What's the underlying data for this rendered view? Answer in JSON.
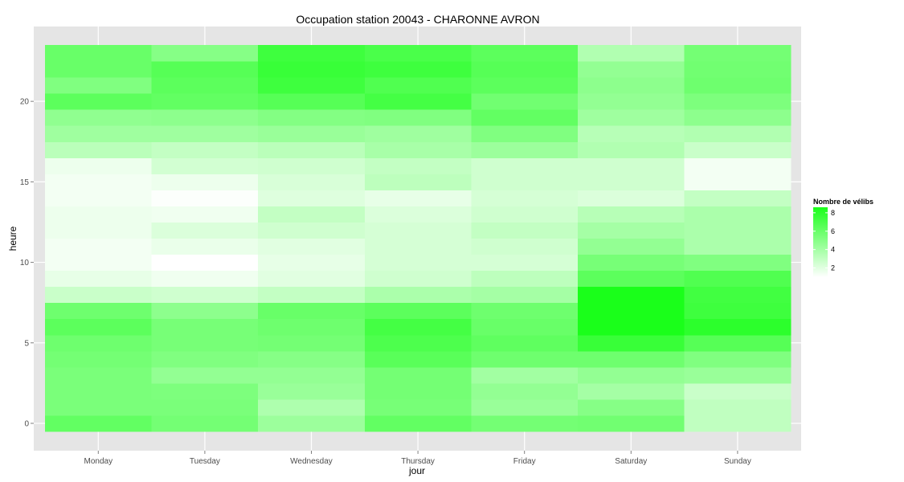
{
  "chart_data": {
    "type": "heatmap",
    "title": "Occupation station 20043 - CHARONNE AVRON",
    "xlabel": "jour",
    "ylabel": "heure",
    "x_categories": [
      "Monday",
      "Tuesday",
      "Wednesday",
      "Thursday",
      "Friday",
      "Saturday",
      "Sunday"
    ],
    "y_values": [
      0,
      1,
      2,
      3,
      4,
      5,
      6,
      7,
      8,
      9,
      10,
      11,
      12,
      13,
      14,
      15,
      16,
      17,
      18,
      19,
      20,
      21,
      22,
      23
    ],
    "y_ticks": [
      0,
      5,
      10,
      15,
      20
    ],
    "ylim": [
      -0.5,
      23.5
    ],
    "values": {
      "Monday": [
        6.2,
        5.4,
        5.4,
        5.4,
        5.6,
        5.8,
        6.4,
        5.8,
        2.8,
        1.8,
        1.4,
        1.4,
        1.6,
        1.6,
        1.4,
        1.4,
        1.6,
        3.3,
        4.2,
        4.7,
        6.4,
        5.2,
        6.0,
        6.0
      ],
      "Tuesday": [
        5.6,
        5.4,
        5.3,
        4.6,
        5.2,
        5.5,
        5.5,
        4.8,
        2.6,
        1.5,
        1.0,
        1.7,
        2.2,
        1.5,
        1.1,
        1.6,
        2.5,
        3.0,
        4.2,
        4.8,
        6.2,
        6.4,
        6.6,
        5.0
      ],
      "Wednesday": [
        4.3,
        3.7,
        4.4,
        4.6,
        5.0,
        5.6,
        5.8,
        6.0,
        3.0,
        2.0,
        1.8,
        2.0,
        2.6,
        3.0,
        2.1,
        2.3,
        2.6,
        3.3,
        4.4,
        5.1,
        6.6,
        7.4,
        7.6,
        7.4
      ],
      "Thursday": [
        6.2,
        5.5,
        5.6,
        5.6,
        6.5,
        6.9,
        7.2,
        6.4,
        3.8,
        2.6,
        2.4,
        2.4,
        2.4,
        2.2,
        1.8,
        3.2,
        3.0,
        3.9,
        4.2,
        5.2,
        7.2,
        6.8,
        7.4,
        7.0
      ],
      "Friday": [
        5.6,
        4.4,
        4.6,
        4.1,
        5.8,
        6.3,
        6.0,
        5.8,
        4.0,
        3.2,
        2.4,
        2.6,
        3.0,
        2.6,
        2.4,
        2.6,
        2.6,
        4.3,
        5.2,
        6.2,
        5.7,
        6.4,
        6.6,
        6.4
      ],
      "Saturday": [
        5.7,
        5.0,
        4.0,
        4.6,
        5.8,
        7.6,
        8.6,
        8.6,
        8.6,
        6.4,
        5.5,
        4.6,
        4.0,
        3.4,
        2.2,
        2.6,
        2.6,
        3.6,
        3.4,
        4.2,
        4.6,
        4.8,
        4.6,
        3.6
      ],
      "Sunday": [
        3.1,
        3.1,
        2.8,
        4.4,
        5.2,
        6.6,
        8.0,
        7.4,
        7.3,
        6.8,
        5.2,
        3.8,
        3.8,
        3.8,
        3.0,
        1.4,
        1.4,
        2.8,
        3.6,
        4.8,
        5.3,
        5.8,
        5.7,
        5.6
      ]
    },
    "legend": {
      "title": "Nombre de vélibs",
      "ticks": [
        2,
        4,
        6,
        8
      ],
      "min": 1.0,
      "max": 8.6,
      "color_low": "#ffffff",
      "color_high": "#1aff1a",
      "placement": "right"
    },
    "panel_background": "#e5e5e5",
    "gridline_color": "#ffffff",
    "grid": true
  }
}
